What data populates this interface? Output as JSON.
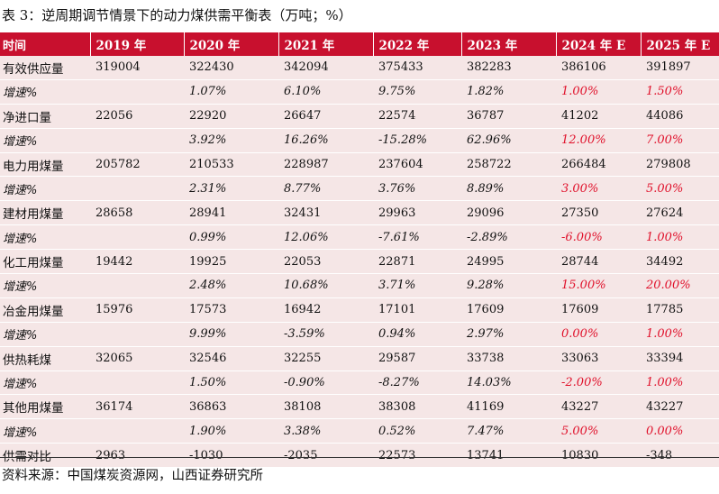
{
  "title": "表 3：逆周期调节情景下的动力煤供需平衡表（万吨；%）",
  "headers": [
    "时间",
    "2019 年",
    "2020 年",
    "2021 年",
    "2022 年",
    "2023 年",
    "2024 年 E",
    "2025 年 E"
  ],
  "rows": [
    {
      "label": "有效供应量",
      "values": [
        "319004",
        "322430",
        "342094",
        "375433",
        "382283",
        "386106",
        "391897"
      ]
    },
    {
      "label": "增速%",
      "values": [
        "",
        "1.07%",
        "6.10%",
        "9.75%",
        "1.82%",
        "1.00%",
        "1.50%"
      ]
    },
    {
      "label": "净进口量",
      "values": [
        "22056",
        "22920",
        "26647",
        "22574",
        "36787",
        "41202",
        "44086"
      ]
    },
    {
      "label": "增速%",
      "values": [
        "",
        "3.92%",
        "16.26%",
        "-15.28%",
        "62.96%",
        "12.00%",
        "7.00%"
      ]
    },
    {
      "label": "电力用煤量",
      "values": [
        "205782",
        "210533",
        "228987",
        "237604",
        "258722",
        "266484",
        "279808"
      ]
    },
    {
      "label": "增速%",
      "values": [
        "",
        "2.31%",
        "8.77%",
        "3.76%",
        "8.89%",
        "3.00%",
        "5.00%"
      ]
    },
    {
      "label": "建材用煤量",
      "values": [
        "28658",
        "28941",
        "32431",
        "29963",
        "29096",
        "27350",
        "27624"
      ]
    },
    {
      "label": "增速%",
      "values": [
        "",
        "0.99%",
        "12.06%",
        "-7.61%",
        "-2.89%",
        "-6.00%",
        "1.00%"
      ]
    },
    {
      "label": "化工用煤量",
      "values": [
        "19442",
        "19925",
        "22053",
        "22871",
        "24995",
        "28744",
        "34492"
      ]
    },
    {
      "label": "增速%",
      "values": [
        "",
        "2.48%",
        "10.68%",
        "3.71%",
        "9.28%",
        "15.00%",
        "20.00%"
      ]
    },
    {
      "label": "冶金用煤量",
      "values": [
        "15976",
        "17573",
        "16942",
        "17101",
        "17609",
        "17609",
        "17785"
      ]
    },
    {
      "label": "增速%",
      "values": [
        "",
        "9.99%",
        "-3.59%",
        "0.94%",
        "2.97%",
        "0.00%",
        "1.00%"
      ]
    },
    {
      "label": "供热耗煤",
      "values": [
        "32065",
        "32546",
        "32255",
        "29587",
        "33738",
        "33063",
        "33394"
      ]
    },
    {
      "label": "增速%",
      "values": [
        "",
        "1.50%",
        "-0.90%",
        "-8.27%",
        "14.03%",
        "-2.00%",
        "1.00%"
      ]
    },
    {
      "label": "其他用煤量",
      "values": [
        "36174",
        "36863",
        "38108",
        "38308",
        "41169",
        "43227",
        "43227"
      ]
    },
    {
      "label": "增速%",
      "values": [
        "",
        "1.90%",
        "3.38%",
        "0.52%",
        "7.47%",
        "5.00%",
        "0.00%"
      ]
    },
    {
      "label": "供需对比",
      "values": [
        "2963",
        "-1030",
        "-2035",
        "22573",
        "13741",
        "10830",
        "-348"
      ]
    }
  ],
  "highlight_color": "#e0102a",
  "header_color": "#c8102e",
  "source": "资料来源：中国煤炭资源网，山西证券研究所"
}
